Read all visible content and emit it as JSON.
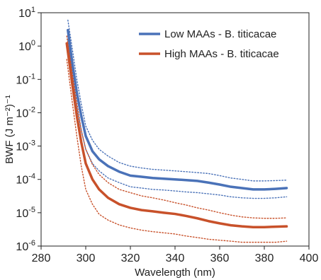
{
  "chart_data": {
    "type": "line",
    "xlabel": "Wavelength (nm)",
    "ylabel": "BWF (J m⁻²)⁻¹",
    "xlim": [
      280,
      400
    ],
    "ylim_log10": [
      -6,
      1
    ],
    "y_scale": "log",
    "x_ticks": [
      280,
      300,
      320,
      340,
      360,
      380,
      400
    ],
    "legend_placement": "top-right",
    "grid": false,
    "series": [
      {
        "name": "Low MAAs - B. titicacae",
        "color": "#4a72b8",
        "style": "solid",
        "x": [
          292,
          294,
          296,
          298,
          300,
          303,
          306,
          310,
          315,
          320,
          325,
          330,
          335,
          340,
          345,
          350,
          355,
          360,
          365,
          370,
          375,
          380,
          385,
          390
        ],
        "y": [
          3.0,
          0.3,
          0.04,
          0.008,
          0.002,
          0.0007,
          0.0004,
          0.00025,
          0.00017,
          0.00013,
          0.00012,
          0.00011,
          0.000105,
          0.0001,
          9.5e-05,
          9e-05,
          8e-05,
          7e-05,
          6e-05,
          5.5e-05,
          5e-05,
          5e-05,
          5.2e-05,
          5.5e-05
        ]
      },
      {
        "name": "Low MAAs upper bound",
        "color": "#4a72b8",
        "style": "dotted",
        "x": [
          292,
          294,
          296,
          298,
          300,
          303,
          306,
          310,
          315,
          320,
          325,
          330,
          335,
          340,
          345,
          350,
          355,
          360,
          365,
          370,
          375,
          380,
          385,
          390
        ],
        "y": [
          6.0,
          0.8,
          0.1,
          0.018,
          0.004,
          0.0015,
          0.0008,
          0.0005,
          0.00032,
          0.00025,
          0.00022,
          0.0002,
          0.00019,
          0.00018,
          0.00017,
          0.00016,
          0.00015,
          0.00013,
          0.00011,
          0.0001,
          9e-05,
          9e-05,
          9.2e-05,
          9.5e-05
        ]
      },
      {
        "name": "Low MAAs lower bound",
        "color": "#4a72b8",
        "style": "dotted",
        "x": [
          292,
          294,
          296,
          298,
          300,
          303,
          306,
          310,
          315,
          320,
          325,
          330,
          335,
          340,
          345,
          350,
          355,
          360,
          365,
          370,
          375,
          380,
          385,
          390
        ],
        "y": [
          1.5,
          0.12,
          0.015,
          0.003,
          0.0008,
          0.0003,
          0.00018,
          0.00011,
          8e-05,
          6e-05,
          5.5e-05,
          5e-05,
          4.8e-05,
          4.5e-05,
          4.2e-05,
          4e-05,
          3.7e-05,
          3.4e-05,
          3e-05,
          2.8e-05,
          2.7e-05,
          2.7e-05,
          2.8e-05,
          3e-05
        ]
      },
      {
        "name": "High MAAs - B. titicacae",
        "color": "#c8512a",
        "style": "solid",
        "x": [
          291.5,
          294,
          296,
          298,
          300,
          303,
          306,
          310,
          315,
          320,
          325,
          330,
          335,
          340,
          345,
          350,
          355,
          360,
          365,
          370,
          375,
          380,
          385,
          390
        ],
        "y": [
          1.2,
          0.07,
          0.008,
          0.0013,
          0.0003,
          0.0001,
          5e-05,
          2.8e-05,
          1.8e-05,
          1.4e-05,
          1.2e-05,
          1.1e-05,
          1e-05,
          9.2e-06,
          8e-06,
          6.8e-06,
          5.6e-06,
          4.8e-06,
          4.2e-06,
          3.9e-06,
          3.7e-06,
          3.7e-06,
          3.8e-06,
          3.9e-06
        ]
      },
      {
        "name": "High MAAs upper bound",
        "color": "#c8512a",
        "style": "dotted",
        "x": [
          291.5,
          294,
          296,
          298,
          300,
          303,
          306,
          310,
          315,
          320,
          325,
          330,
          335,
          340,
          345,
          350,
          355,
          360,
          365,
          370,
          375,
          380,
          385,
          390
        ],
        "y": [
          2.0,
          0.15,
          0.02,
          0.003,
          0.0008,
          0.00028,
          0.00014,
          8e-05,
          5e-05,
          4e-05,
          3.2e-05,
          2.8e-05,
          2.4e-05,
          2e-05,
          1.7e-05,
          1.4e-05,
          1.2e-05,
          1e-05,
          8.5e-06,
          7.5e-06,
          7e-06,
          6.8e-06,
          6.8e-06,
          7e-06
        ]
      },
      {
        "name": "High MAAs lower bound",
        "color": "#c8512a",
        "style": "dotted",
        "x": [
          291.5,
          294,
          296,
          298,
          300,
          303,
          306,
          310,
          315,
          320,
          325,
          330,
          335,
          340,
          345,
          350,
          355,
          360,
          365,
          370,
          375,
          380,
          385,
          390
        ],
        "y": [
          0.4,
          0.02,
          0.002,
          0.00025,
          5e-05,
          1.8e-05,
          9e-06,
          6e-06,
          4.3e-06,
          3.5e-06,
          3e-06,
          2.7e-06,
          2.5e-06,
          2.3e-06,
          2e-06,
          1.8e-06,
          1.6e-06,
          1.5e-06,
          1.4e-06,
          1.3e-06,
          1.3e-06,
          1.3e-06,
          1.3e-06,
          1.4e-06
        ]
      }
    ],
    "legend": [
      {
        "label": "Low MAAs - B. titicacae",
        "color": "#4a72b8"
      },
      {
        "label": "High MAAs - B. titicacae",
        "color": "#c8512a"
      }
    ]
  }
}
